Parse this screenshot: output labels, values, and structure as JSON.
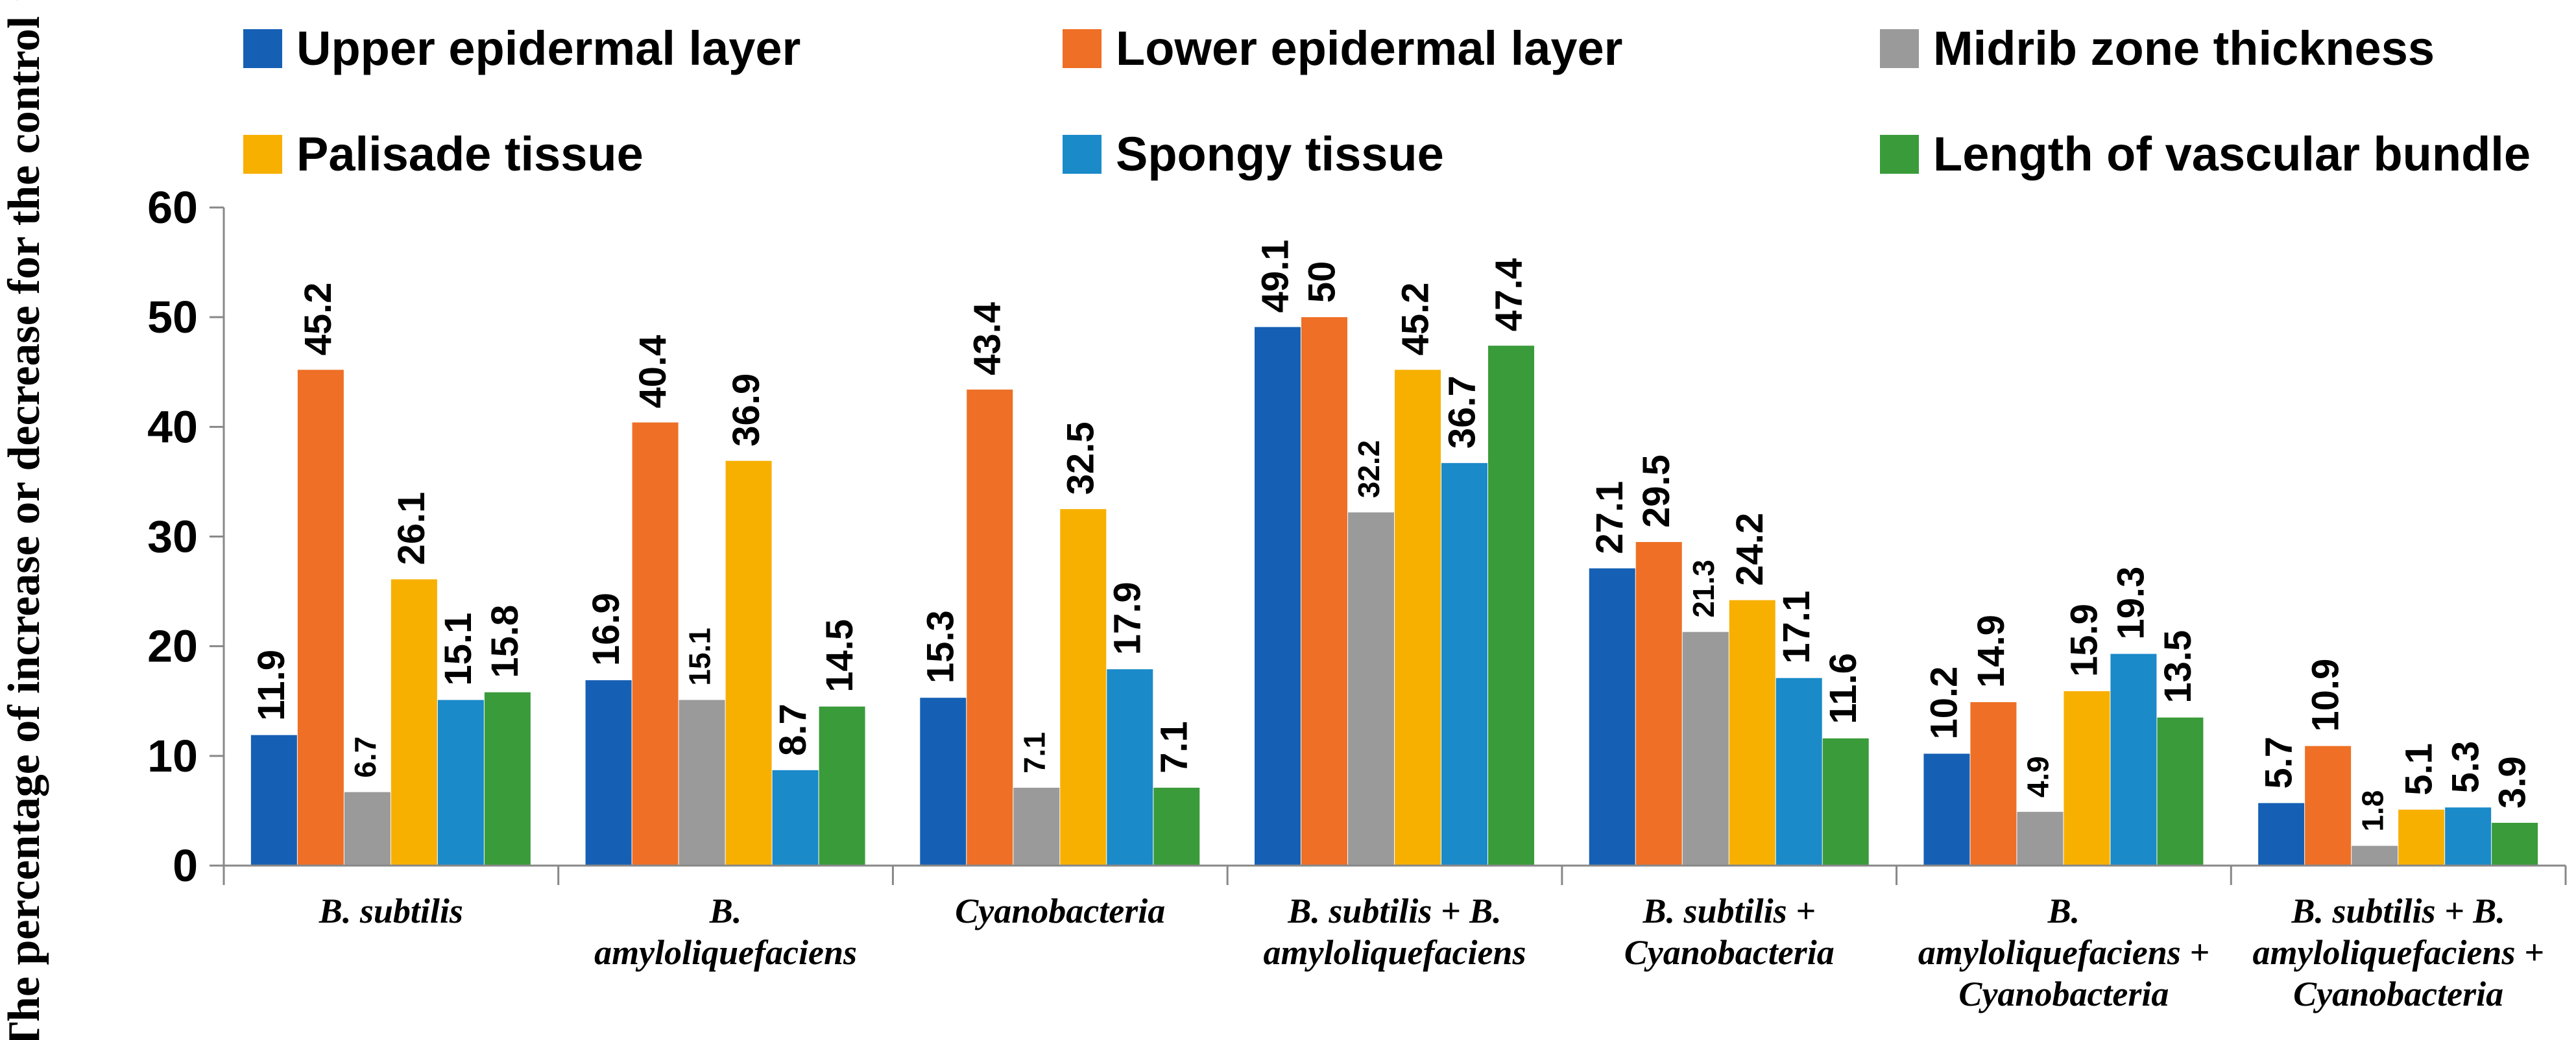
{
  "chart_data": {
    "type": "bar",
    "ylabel": "The percentage of increase or decrease for the control %",
    "ylim": [
      0,
      60
    ],
    "yticks": [
      0,
      10,
      20,
      30,
      40,
      50,
      60
    ],
    "legend_position": "top",
    "categories": [
      [
        "B. subtilis"
      ],
      [
        "B.",
        "amyloliquefaciens"
      ],
      [
        "Cyanobacteria"
      ],
      [
        "B. subtilis + B.",
        "amyloliquefaciens"
      ],
      [
        "B. subtilis +",
        "Cyanobacteria"
      ],
      [
        "B.",
        "amyloliquefaciens +",
        "Cyanobacteria"
      ],
      [
        "B. subtilis  + B.",
        "amyloliquefaciens +",
        "Cyanobacteria"
      ]
    ],
    "series": [
      {
        "name": "Upper epidermal layer",
        "color": "#1560b4",
        "values": [
          11.9,
          16.9,
          15.3,
          49.1,
          27.1,
          10.2,
          5.7
        ]
      },
      {
        "name": "Lower epidermal layer",
        "color": "#ee6f25",
        "values": [
          45.2,
          40.4,
          43.4,
          50,
          29.5,
          14.9,
          10.9
        ]
      },
      {
        "name": "Midrib zone thickness",
        "color": "#9a9a9a",
        "values": [
          6.7,
          15.1,
          7.1,
          32.2,
          21.3,
          4.9,
          1.8
        ]
      },
      {
        "name": "Palisade tissue",
        "color": "#f7b000",
        "values": [
          26.1,
          36.9,
          32.5,
          45.2,
          24.2,
          15.9,
          5.1
        ]
      },
      {
        "name": "Spongy tissue",
        "color": "#1a8ac9",
        "values": [
          15.1,
          8.7,
          17.9,
          36.7,
          17.1,
          19.3,
          5.3
        ]
      },
      {
        "name": "Length of vascular bundle",
        "color": "#3a9b3a",
        "values": [
          15.8,
          14.5,
          7.1,
          47.4,
          11.6,
          13.5,
          3.9
        ]
      }
    ],
    "data_labels": [
      [
        "11.9",
        "45.2",
        "6.7",
        "26.1",
        "15.1",
        "15.8"
      ],
      [
        "16.9",
        "40.4",
        "15.1",
        "36.9",
        "8.7",
        "14.5"
      ],
      [
        "15.3",
        "43.4",
        "7.1",
        "32.5",
        "17.9",
        "7.1"
      ],
      [
        "49.1",
        "50",
        "32.2",
        "45.2",
        "36.7",
        "47.4"
      ],
      [
        "27.1",
        "29.5",
        "21.3",
        "24.2",
        "17.1",
        "11.6"
      ],
      [
        "10.2",
        "14.9",
        "4.9",
        "15.9",
        "19.3",
        "13.5"
      ],
      [
        "5.7",
        "10.9",
        "1.8",
        "5.1",
        "5.3",
        "3.9"
      ]
    ]
  }
}
